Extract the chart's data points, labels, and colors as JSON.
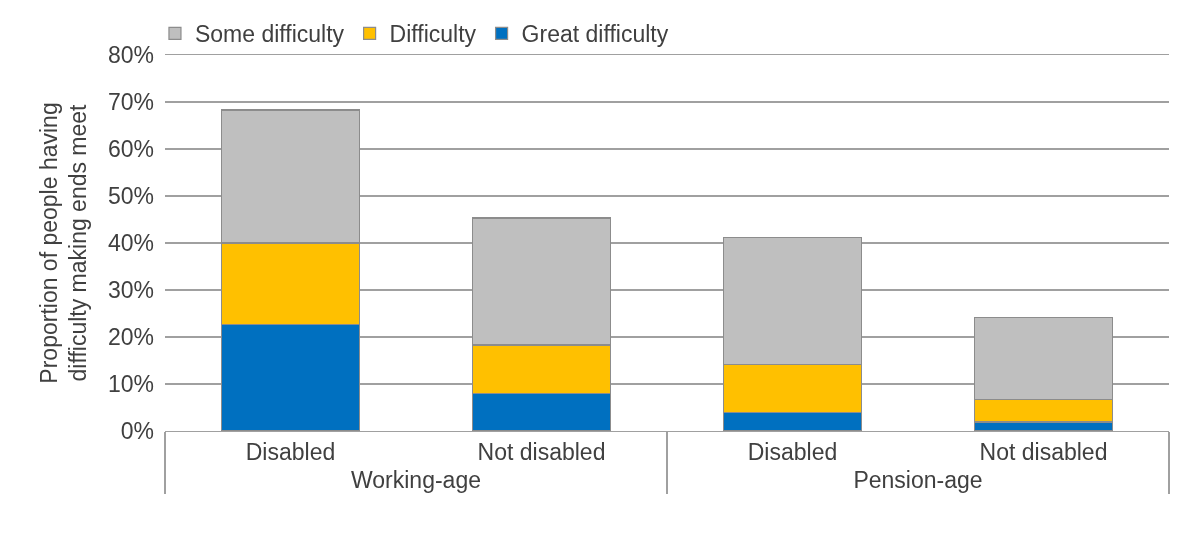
{
  "chart_data": {
    "type": "bar",
    "stacked": true,
    "categories": [
      "Disabled",
      "Not disabled",
      "Disabled",
      "Not disabled"
    ],
    "annotations": [
      "Working-age",
      "Pension-age"
    ],
    "ylabel": "Proportion of people having difficulty making ends meet",
    "series": [
      {
        "name": "Great difficulty",
        "color": "#0070c0",
        "values": [
          22.6,
          7.9,
          4.0,
          1.9
        ]
      },
      {
        "name": "Difficulty",
        "color": "#ffc000",
        "values": [
          17.4,
          10.4,
          10.1,
          4.8
        ]
      },
      {
        "name": "Some difficulty",
        "color": "#bfbfbf",
        "values": [
          28.3,
          27.0,
          27.1,
          17.4
        ]
      }
    ],
    "ylim": [
      0,
      80
    ],
    "yticks": [
      {
        "value": 0,
        "label": "0%"
      },
      {
        "value": 10,
        "label": "10%"
      },
      {
        "value": 20,
        "label": "20%"
      },
      {
        "value": 30,
        "label": "30%"
      },
      {
        "value": 40,
        "label": "40%"
      },
      {
        "value": 50,
        "label": "50%"
      },
      {
        "value": 60,
        "label": "60%"
      },
      {
        "value": 70,
        "label": "70%"
      },
      {
        "value": 80,
        "label": "80%"
      }
    ],
    "grid": "y",
    "legend": "top left"
  }
}
